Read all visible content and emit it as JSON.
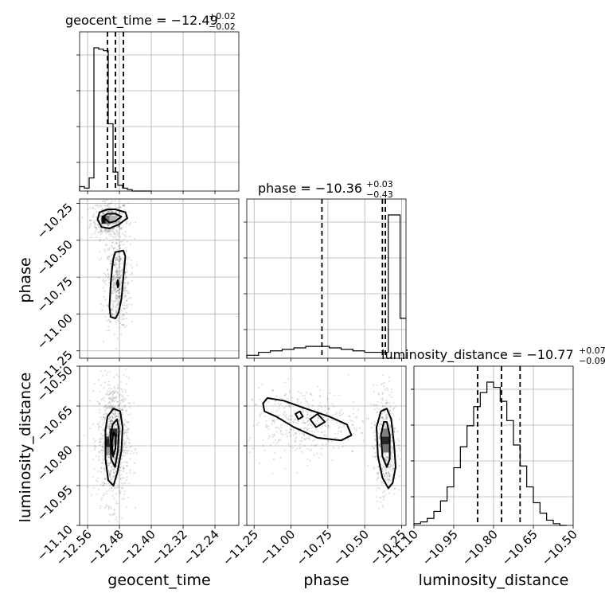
{
  "chart_data": {
    "type": "corner",
    "parameters": [
      "geocent_time",
      "phase",
      "luminosity_distance"
    ],
    "titles": [
      {
        "param": "geocent_time",
        "label": "geocent_time = ",
        "median": "−12.49",
        "plus": "+0.02",
        "minus": "−0.02"
      },
      {
        "param": "phase",
        "label": "phase = ",
        "median": "−10.36",
        "plus": "+0.03",
        "minus": "−0.43"
      },
      {
        "param": "luminosity_distance",
        "label": "luminosity_distance = ",
        "median": "−10.77",
        "plus": "+0.07",
        "minus": "−0.09"
      }
    ],
    "axes": {
      "geocent_time": {
        "range": [
          -12.58,
          -12.18
        ],
        "ticks": [
          -12.56,
          -12.48,
          -12.4,
          -12.32,
          -12.24
        ],
        "tick_labels": [
          "−12.56",
          "−12.48",
          "−12.40",
          "−12.32",
          "−12.24"
        ]
      },
      "phase": {
        "range": [
          -11.3,
          -10.22
        ],
        "ticks": [
          -11.25,
          -11.0,
          -10.75,
          -10.5,
          -10.25
        ],
        "tick_labels": [
          "−11.25",
          "−11.00",
          "−10.75",
          "−10.50",
          "−10.25"
        ]
      },
      "luminosity_distance": {
        "range": [
          -11.1,
          -10.5
        ],
        "ticks": [
          -11.1,
          -10.95,
          -10.8,
          -10.65,
          -10.5
        ],
        "tick_labels": [
          "−11.10",
          "−10.95",
          "−10.80",
          "−10.65",
          "−10.50"
        ]
      }
    },
    "histograms": {
      "geocent_time": {
        "bin_edges": [
          -12.58,
          -12.568,
          -12.556,
          -12.544,
          -12.532,
          -12.52,
          -12.508,
          -12.496,
          -12.484,
          -12.472,
          -12.46,
          -12.448,
          -12.436,
          -12.424,
          -12.412,
          -12.4
        ],
        "counts": [
          0.03,
          0.02,
          0.09,
          0.98,
          0.97,
          0.96,
          0.46,
          0.13,
          0.04,
          0.02,
          0.01,
          0,
          0,
          0,
          0
        ],
        "quantiles": [
          -12.51,
          -12.49,
          -12.47
        ]
      },
      "phase": {
        "bin_edges": [
          -11.3,
          -11.22,
          -11.14,
          -11.06,
          -10.98,
          -10.9,
          -10.82,
          -10.74,
          -10.66,
          -10.58,
          -10.5,
          -10.42,
          -10.34,
          -10.26,
          -10.22
        ],
        "counts": [
          0.02,
          0.04,
          0.05,
          0.06,
          0.07,
          0.08,
          0.08,
          0.07,
          0.06,
          0.05,
          0.04,
          0.04,
          0.97,
          0.27
        ],
        "quantiles": [
          -10.79,
          -10.38,
          -10.36
        ]
      },
      "luminosity_distance": {
        "bin_edges": [
          -11.1,
          -11.075,
          -11.05,
          -11.025,
          -11.0,
          -10.975,
          -10.95,
          -10.925,
          -10.9,
          -10.875,
          -10.85,
          -10.825,
          -10.8,
          -10.775,
          -10.75,
          -10.725,
          -10.7,
          -10.675,
          -10.65,
          -10.625,
          -10.6,
          -10.575,
          -10.55,
          -10.525
        ],
        "counts": [
          0.01,
          0.02,
          0.04,
          0.08,
          0.14,
          0.22,
          0.33,
          0.45,
          0.57,
          0.68,
          0.76,
          0.82,
          0.79,
          0.71,
          0.6,
          0.46,
          0.34,
          0.22,
          0.13,
          0.07,
          0.03,
          0.01,
          0.0
        ],
        "quantiles": [
          -10.86,
          -10.77,
          -10.7
        ]
      }
    },
    "joint_2d": [
      {
        "x": "geocent_time",
        "y": "phase",
        "modes": [
          {
            "x": -12.505,
            "y": -10.36,
            "sx": 0.018,
            "sy": 0.05,
            "weight": 0.45
          },
          {
            "x": -12.485,
            "y": -10.79,
            "sx": 0.012,
            "sy": 0.12,
            "weight": 0.55
          }
        ],
        "contours": [
          [
            [
              -12.535,
              -10.36
            ],
            [
              -12.53,
              -10.31
            ],
            [
              -12.51,
              -10.29
            ],
            [
              -12.49,
              -10.29
            ],
            [
              -12.465,
              -10.31
            ],
            [
              -12.46,
              -10.35
            ],
            [
              -12.48,
              -10.39
            ],
            [
              -12.505,
              -10.42
            ],
            [
              -12.525,
              -10.41
            ]
          ],
          [
            [
              -12.522,
              -10.34
            ],
            [
              -12.51,
              -10.32
            ],
            [
              -12.49,
              -10.32
            ],
            [
              -12.475,
              -10.34
            ],
            [
              -12.49,
              -10.37
            ],
            [
              -12.505,
              -10.38
            ]
          ],
          [
            [
              -12.495,
              -10.62
            ],
            [
              -12.49,
              -10.58
            ],
            [
              -12.47,
              -10.57
            ],
            [
              -12.465,
              -10.61
            ],
            [
              -12.47,
              -10.75
            ],
            [
              -12.475,
              -10.9
            ],
            [
              -12.482,
              -10.99
            ],
            [
              -12.49,
              -11.03
            ],
            [
              -12.502,
              -11.02
            ],
            [
              -12.505,
              -10.95
            ],
            [
              -12.502,
              -10.8
            ],
            [
              -12.498,
              -10.68
            ]
          ],
          [
            [
              -12.486,
              -10.79
            ],
            [
              -12.484,
              -10.77
            ],
            [
              -12.482,
              -10.8
            ],
            [
              -12.484,
              -10.82
            ]
          ]
        ],
        "dense_cells": [
          {
            "x": -12.515,
            "y": -10.36,
            "shade": 0.95
          },
          {
            "x": -12.505,
            "y": -10.36,
            "shade": 0.55
          },
          {
            "x": -12.495,
            "y": -10.36,
            "shade": 0.3
          }
        ]
      },
      {
        "x": "geocent_time",
        "y": "luminosity_distance",
        "modes": [
          {
            "x": -12.495,
            "y": -10.78,
            "sx": 0.015,
            "sy": 0.09,
            "weight": 1.0
          }
        ],
        "contours": [
          [
            [
              -12.515,
              -10.74
            ],
            [
              -12.51,
              -10.69
            ],
            [
              -12.495,
              -10.66
            ],
            [
              -12.478,
              -10.67
            ],
            [
              -12.472,
              -10.73
            ],
            [
              -12.475,
              -10.82
            ],
            [
              -12.485,
              -10.9
            ],
            [
              -12.495,
              -10.95
            ],
            [
              -12.508,
              -10.93
            ],
            [
              -12.515,
              -10.85
            ]
          ],
          [
            [
              -12.502,
              -10.76
            ],
            [
              -12.497,
              -10.72
            ],
            [
              -12.486,
              -10.7
            ],
            [
              -12.481,
              -10.74
            ],
            [
              -12.484,
              -10.82
            ],
            [
              -12.491,
              -10.88
            ],
            [
              -12.501,
              -10.85
            ]
          ],
          [
            [
              -12.499,
              -10.79
            ],
            [
              -12.495,
              -10.75
            ],
            [
              -12.489,
              -10.76
            ],
            [
              -12.49,
              -10.81
            ],
            [
              -12.496,
              -10.84
            ]
          ]
        ],
        "dense_cells": [
          {
            "x": -12.505,
            "y": -10.78,
            "shade": 0.7
          },
          {
            "x": -12.505,
            "y": -10.79,
            "shade": 0.85
          },
          {
            "x": -12.495,
            "y": -10.75,
            "shade": 0.8
          },
          {
            "x": -12.495,
            "y": -10.78,
            "shade": 0.45
          },
          {
            "x": -12.505,
            "y": -10.82,
            "shade": 0.4
          }
        ]
      },
      {
        "x": "phase",
        "y": "luminosity_distance",
        "modes": [
          {
            "x": -10.92,
            "y": -10.71,
            "sx": 0.15,
            "sy": 0.05,
            "weight": 0.45
          },
          {
            "x": -10.36,
            "y": -10.79,
            "sx": 0.03,
            "sy": 0.08,
            "weight": 0.55
          }
        ],
        "contours": [
          [
            [
              -11.19,
              -10.64
            ],
            [
              -11.16,
              -10.62
            ],
            [
              -11.05,
              -10.63
            ],
            [
              -10.9,
              -10.66
            ],
            [
              -10.74,
              -10.69
            ],
            [
              -10.62,
              -10.72
            ],
            [
              -10.59,
              -10.76
            ],
            [
              -10.66,
              -10.78
            ],
            [
              -10.82,
              -10.77
            ],
            [
              -10.98,
              -10.73
            ],
            [
              -11.1,
              -10.69
            ],
            [
              -11.18,
              -10.67
            ]
          ],
          [
            [
              -10.97,
              -10.68
            ],
            [
              -10.94,
              -10.67
            ],
            [
              -10.92,
              -10.69
            ],
            [
              -10.95,
              -10.7
            ]
          ],
          [
            [
              -10.87,
              -10.7
            ],
            [
              -10.82,
              -10.68
            ],
            [
              -10.77,
              -10.71
            ],
            [
              -10.83,
              -10.73
            ]
          ],
          [
            [
              -10.42,
              -10.73
            ],
            [
              -10.39,
              -10.67
            ],
            [
              -10.35,
              -10.66
            ],
            [
              -10.32,
              -10.7
            ],
            [
              -10.3,
              -10.8
            ],
            [
              -10.29,
              -10.88
            ],
            [
              -10.31,
              -10.94
            ],
            [
              -10.34,
              -10.96
            ],
            [
              -10.38,
              -10.92
            ],
            [
              -10.41,
              -10.84
            ]
          ],
          [
            [
              -10.39,
              -10.76
            ],
            [
              -10.37,
              -10.71
            ],
            [
              -10.35,
              -10.71
            ],
            [
              -10.33,
              -10.76
            ],
            [
              -10.33,
              -10.85
            ],
            [
              -10.35,
              -10.88
            ],
            [
              -10.38,
              -10.84
            ]
          ]
        ],
        "dense_cells": [
          {
            "x": -10.36,
            "y": -10.78,
            "shade": 0.85
          },
          {
            "x": -10.36,
            "y": -10.81,
            "shade": 0.55
          },
          {
            "x": -10.36,
            "y": -10.75,
            "shade": 0.5
          }
        ]
      }
    ]
  }
}
